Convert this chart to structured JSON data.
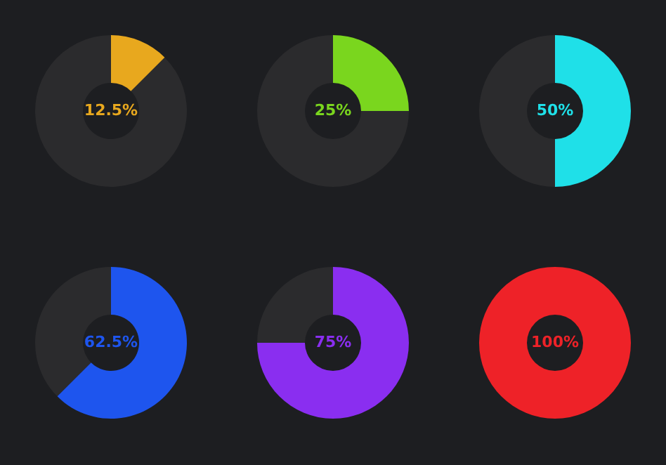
{
  "chart_data": [
    {
      "type": "donut",
      "categories": [
        null,
        null
      ],
      "values": [
        12.5,
        87.5
      ],
      "colors": [
        "#e8a81e",
        "#2b2b2d"
      ],
      "value_labels": [
        "12.5%",
        null
      ]
    },
    {
      "type": "donut",
      "categories": [
        null,
        null
      ],
      "values": [
        25,
        75
      ],
      "colors": [
        "#7ad61e",
        "#2b2b2d"
      ],
      "value_labels": [
        "25%",
        null
      ]
    },
    {
      "type": "donut",
      "categories": [
        null,
        null
      ],
      "values": [
        50,
        50
      ],
      "colors": [
        "#1fe0e8",
        "#2b2b2d"
      ],
      "value_labels": [
        "50%",
        null
      ]
    },
    {
      "type": "donut",
      "categories": [
        null,
        null
      ],
      "values": [
        62.5,
        37.5
      ],
      "colors": [
        "#1e55ee",
        "#2b2b2d"
      ],
      "value_labels": [
        "62.5%",
        null
      ]
    },
    {
      "type": "donut",
      "categories": [
        null,
        null
      ],
      "values": [
        75,
        25
      ],
      "colors": [
        "#8a2ef0",
        "#2b2b2d"
      ],
      "value_labels": [
        "75%",
        null
      ]
    },
    {
      "type": "donut",
      "categories": [
        null
      ],
      "values": [
        100
      ],
      "colors": [
        "#ee2228"
      ],
      "value_labels": [
        "100%"
      ]
    }
  ]
}
